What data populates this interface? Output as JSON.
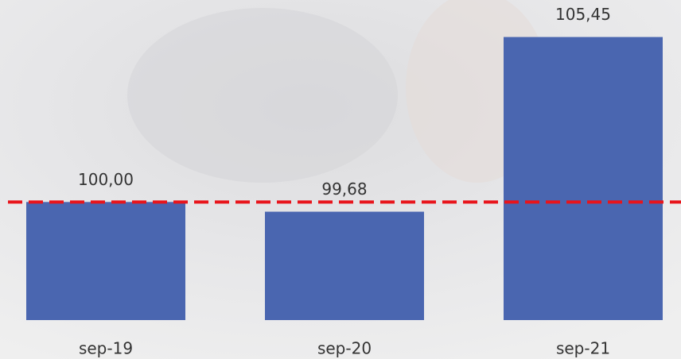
{
  "chart_data": {
    "type": "bar",
    "categories": [
      "sep-19",
      "sep-20",
      "sep-21"
    ],
    "values": [
      100,
      99.68,
      105.45
    ],
    "value_labels": [
      "100,00",
      "99,68",
      "105,45"
    ],
    "color": "#4a66b0",
    "ylim": [
      96.1,
      106.2
    ],
    "reference_line": {
      "value": 100,
      "color": "#e8141b"
    }
  }
}
